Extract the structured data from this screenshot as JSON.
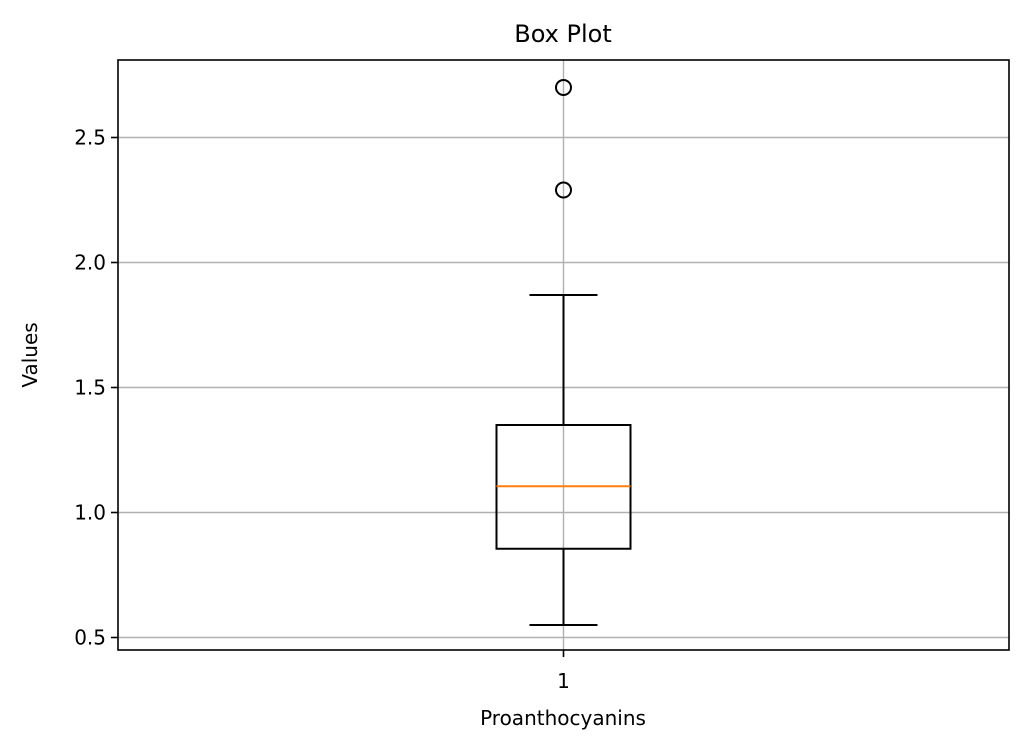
{
  "chart_data": {
    "type": "box",
    "title": "Box Plot",
    "xlabel": "Proanthocyanins",
    "ylabel": "Values",
    "categories": [
      "1"
    ],
    "ylim": [
      0.45,
      2.81
    ],
    "yticks": [
      0.5,
      1.0,
      1.5,
      2.0,
      2.5
    ],
    "ytick_labels": [
      "0.5",
      "1.0",
      "1.5",
      "2.0",
      "2.5"
    ],
    "grid": true,
    "boxes": [
      {
        "label": "1",
        "whisker_low": 0.55,
        "q1": 0.855,
        "median": 1.105,
        "q3": 1.35,
        "whisker_high": 1.87,
        "fliers": [
          2.29,
          2.7
        ]
      }
    ],
    "colors": {
      "median": "#ff7f0e",
      "box": "#000000",
      "grid": "#b0b0b0"
    }
  }
}
